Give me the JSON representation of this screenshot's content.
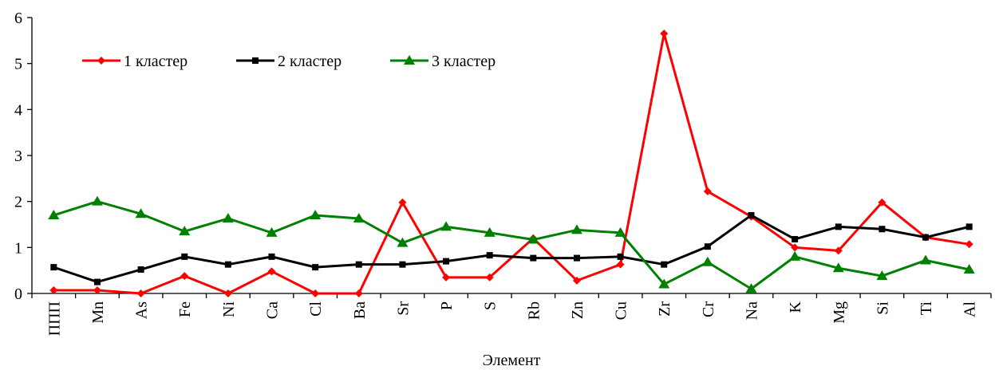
{
  "chart_data": {
    "type": "line",
    "xlabel": "Элемент",
    "ylabel": "",
    "ylim": [
      0,
      6
    ],
    "yticks": [
      "0",
      "1",
      "2",
      "3",
      "4",
      "5",
      "6"
    ],
    "grid": false,
    "legend_position": "top-left",
    "categories": [
      "ППП",
      "Mn",
      "As",
      "Fe",
      "Ni",
      "Ca",
      "Cl",
      "Ba",
      "Sr",
      "P",
      "S",
      "Rb",
      "Zn",
      "Cu",
      "Zr",
      "Cr",
      "Na",
      "K",
      "Mg",
      "Si",
      "Ti",
      "Al"
    ],
    "series": [
      {
        "name": "1 кластер",
        "color": "#ff0000",
        "marker": "diamond",
        "values": [
          0.07,
          0.07,
          0.0,
          0.38,
          0.0,
          0.48,
          0.0,
          0.0,
          1.98,
          0.35,
          0.35,
          1.2,
          0.28,
          0.63,
          5.65,
          2.22,
          1.67,
          1.0,
          0.93,
          1.98,
          1.22,
          1.07
        ]
      },
      {
        "name": "2 кластер",
        "color": "#000000",
        "marker": "square",
        "values": [
          0.57,
          0.25,
          0.52,
          0.8,
          0.63,
          0.8,
          0.57,
          0.63,
          0.63,
          0.7,
          0.83,
          0.77,
          0.77,
          0.8,
          0.63,
          1.02,
          1.7,
          1.18,
          1.45,
          1.4,
          1.22,
          1.45
        ]
      },
      {
        "name": "3 кластер",
        "color": "#008000",
        "marker": "triangle",
        "values": [
          1.7,
          2.0,
          1.73,
          1.35,
          1.63,
          1.32,
          1.7,
          1.63,
          1.1,
          1.45,
          1.32,
          1.17,
          1.38,
          1.32,
          0.2,
          0.68,
          0.1,
          0.8,
          0.55,
          0.38,
          0.72,
          0.52
        ]
      }
    ]
  }
}
